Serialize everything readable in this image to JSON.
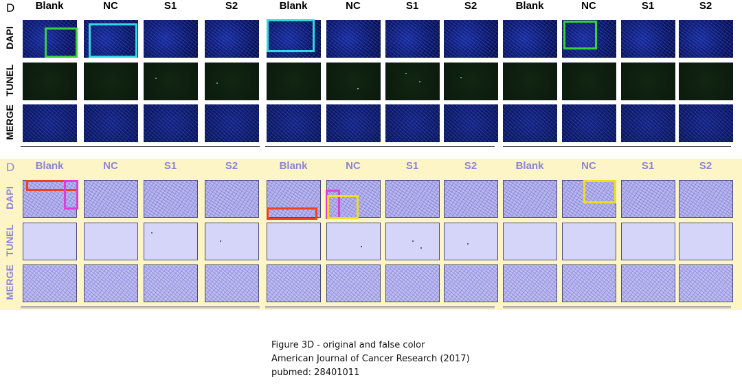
{
  "panel_letter": "D",
  "columns": [
    "Blank",
    "NC",
    "S1",
    "S2",
    "Blank",
    "NC",
    "S1",
    "S2",
    "Blank",
    "NC",
    "S1",
    "S2"
  ],
  "rows": [
    "DAPI",
    "TUNEL",
    "MERGE"
  ],
  "colors": {
    "green_box": "#35d135",
    "cyan_box": "#33d8e6",
    "red_box": "#f0401e",
    "magenta_box": "#e03cd6",
    "yellow_box": "#f0dd1c",
    "false_color_bg": "#fdf5c6",
    "false_color_label": "#8b84d8"
  },
  "caption": {
    "line1": "Figure 3D - original and false color",
    "line2": "American Journal of Cancer Research (2017)",
    "line3": "pubmed: 28401011"
  }
}
